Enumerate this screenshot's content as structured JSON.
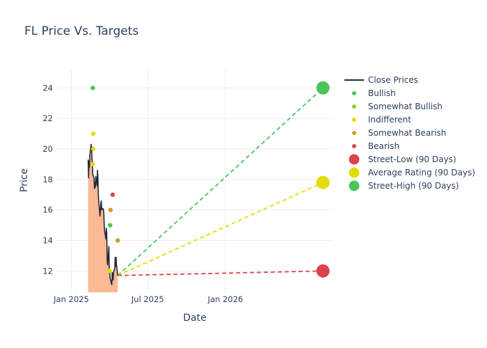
{
  "chart_data": {
    "type": "line",
    "title": "FL Price Vs. Targets",
    "xlabel": "Date",
    "ylabel": "Price",
    "x_ticks": [
      "Jan 2025",
      "Jul 2025",
      "Jan 2026"
    ],
    "y_ticks": [
      12,
      14,
      16,
      18,
      20,
      22,
      24
    ],
    "xlim": [
      "2024-11-25",
      "2026-09-15"
    ],
    "ylim": [
      10.6,
      25.2
    ],
    "grid": true,
    "legend_position": "right",
    "close_prices": {
      "name": "Close Prices",
      "color": "#1f2a3a",
      "fill_color": "#fbb994",
      "points": [
        [
          "2025-02-10",
          19.3
        ],
        [
          "2025-02-11",
          18.1
        ],
        [
          "2025-02-12",
          19.2
        ],
        [
          "2025-02-13",
          18.8
        ],
        [
          "2025-02-14",
          19.6
        ],
        [
          "2025-02-17",
          20.3
        ],
        [
          "2025-02-18",
          20.1
        ],
        [
          "2025-02-19",
          19.4
        ],
        [
          "2025-02-20",
          19.0
        ],
        [
          "2025-02-21",
          18.3
        ],
        [
          "2025-02-24",
          18.1
        ],
        [
          "2025-02-25",
          17.4
        ],
        [
          "2025-02-26",
          17.8
        ],
        [
          "2025-02-27",
          17.5
        ],
        [
          "2025-02-28",
          18.2
        ],
        [
          "2025-03-03",
          17.6
        ],
        [
          "2025-03-04",
          18.6
        ],
        [
          "2025-03-05",
          18.2
        ],
        [
          "2025-03-06",
          17.0
        ],
        [
          "2025-03-07",
          16.6
        ],
        [
          "2025-03-10",
          15.6
        ],
        [
          "2025-03-11",
          15.9
        ],
        [
          "2025-03-12",
          16.4
        ],
        [
          "2025-03-13",
          16.6
        ],
        [
          "2025-03-14",
          16.0
        ],
        [
          "2025-03-17",
          16.1
        ],
        [
          "2025-03-18",
          16.0
        ],
        [
          "2025-03-19",
          15.8
        ],
        [
          "2025-03-20",
          15.0
        ],
        [
          "2025-03-21",
          14.6
        ],
        [
          "2025-03-24",
          14.1
        ],
        [
          "2025-03-25",
          14.8
        ],
        [
          "2025-03-26",
          14.5
        ],
        [
          "2025-03-27",
          12.6
        ],
        [
          "2025-03-28",
          12.4
        ],
        [
          "2025-03-31",
          13.6
        ],
        [
          "2025-04-01",
          11.9
        ],
        [
          "2025-04-02",
          12.0
        ],
        [
          "2025-04-03",
          11.5
        ],
        [
          "2025-04-04",
          11.4
        ],
        [
          "2025-04-07",
          11.1
        ],
        [
          "2025-04-08",
          11.9
        ],
        [
          "2025-04-09",
          11.6
        ],
        [
          "2025-04-10",
          11.4
        ],
        [
          "2025-04-11",
          11.9
        ],
        [
          "2025-04-14",
          12.2
        ],
        [
          "2025-04-15",
          12.9
        ],
        [
          "2025-04-16",
          12.3
        ],
        [
          "2025-04-17",
          12.9
        ],
        [
          "2025-04-18",
          12.4
        ],
        [
          "2025-04-21",
          11.7
        ]
      ]
    },
    "ratings": {
      "legend": [
        {
          "name": "Bullish",
          "color": "#4dc35a"
        },
        {
          "name": "Somewhat Bullish",
          "color": "#8ccf2e"
        },
        {
          "name": "Indifferent",
          "color": "#e2dc0a"
        },
        {
          "name": "Somewhat Bearish",
          "color": "#d29a2a"
        },
        {
          "name": "Bearish",
          "color": "#d9434a"
        }
      ],
      "points": [
        {
          "date": "2025-02-21",
          "value": 24,
          "rating": "Bullish"
        },
        {
          "date": "2025-02-22",
          "value": 21,
          "rating": "Indifferent"
        },
        {
          "date": "2025-02-22",
          "value": 20,
          "rating": "Indifferent"
        },
        {
          "date": "2025-02-21",
          "value": 19,
          "rating": "Indifferent"
        },
        {
          "date": "2025-04-03",
          "value": 15,
          "rating": "Bullish"
        },
        {
          "date": "2025-04-02",
          "value": 12,
          "rating": "Indifferent"
        },
        {
          "date": "2025-04-04",
          "value": 16,
          "rating": "Somewhat Bearish"
        },
        {
          "date": "2025-04-09",
          "value": 17,
          "rating": "Bearish"
        },
        {
          "date": "2025-04-21",
          "value": 14,
          "rating": "Somewhat Bearish"
        }
      ]
    },
    "targets": {
      "start": {
        "date": "2025-04-21",
        "value": 11.7
      },
      "end_date": "2026-08-20",
      "series": [
        {
          "name": "Street-Low (90 Days)",
          "value": 12,
          "color": "#d9434a"
        },
        {
          "name": "Average Rating (90 Days)",
          "value": 17.8,
          "color": "#e2dc0a"
        },
        {
          "name": "Street-High (90 Days)",
          "value": 24,
          "color": "#4dc35a"
        }
      ]
    }
  }
}
